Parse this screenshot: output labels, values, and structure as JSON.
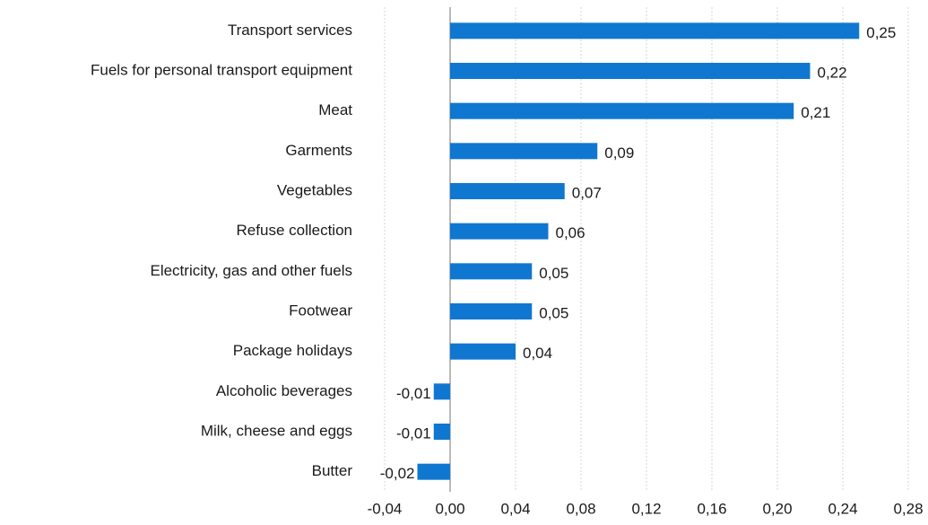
{
  "chart_data": {
    "type": "bar",
    "orientation": "horizontal",
    "categories": [
      "Transport services",
      "Fuels for personal transport equipment",
      "Meat",
      "Garments",
      "Vegetables",
      "Refuse collection",
      "Electricity, gas and other fuels",
      "Footwear",
      "Package holidays",
      "Alcoholic beverages",
      "Milk, cheese and eggs",
      "Butter"
    ],
    "values": [
      0.25,
      0.22,
      0.21,
      0.09,
      0.07,
      0.06,
      0.05,
      0.05,
      0.04,
      -0.01,
      -0.01,
      -0.02
    ],
    "value_labels": [
      "0,25",
      "0,22",
      "0,21",
      "0,09",
      "0,07",
      "0,06",
      "0,05",
      "0,05",
      "0,04",
      "-0,01",
      "-0,01",
      "-0,02"
    ],
    "color": "#1077d0",
    "xlim": [
      -0.04,
      0.28
    ],
    "xticks": [
      {
        "value": -0.04,
        "label": "-0,04"
      },
      {
        "value": 0,
        "label": "0,00"
      },
      {
        "value": 0.04,
        "label": "0,04"
      },
      {
        "value": 0.08,
        "label": "0,08"
      },
      {
        "value": 0.12,
        "label": "0,12"
      },
      {
        "value": 0.16,
        "label": "0,16"
      },
      {
        "value": 0.2,
        "label": "0,20"
      },
      {
        "value": 0.24,
        "label": "0,24"
      },
      {
        "value": 0.28,
        "label": "0,28"
      }
    ],
    "grid": true
  }
}
